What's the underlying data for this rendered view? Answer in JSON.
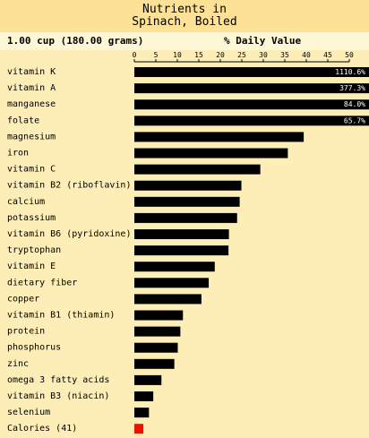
{
  "title": {
    "line1": "Nutrients in",
    "line2": "Spinach, Boiled"
  },
  "header": {
    "serving": "1.00 cup (180.00 grams)",
    "dv_label": "% Daily Value"
  },
  "colors": {
    "bar": "#000000",
    "calories_bar": "#ee1100",
    "title_bg": "#fde196",
    "header_bg": "#fdf7d6",
    "body_bg": "#fdedb7"
  },
  "chart_data": {
    "type": "bar",
    "orientation": "horizontal",
    "xlim": [
      0,
      50
    ],
    "xticks": [
      0,
      5,
      10,
      15,
      20,
      25,
      30,
      35,
      40,
      45,
      50
    ],
    "grid": false,
    "categories": [
      "vitamin K",
      "vitamin A",
      "manganese",
      "folate",
      "magnesium",
      "iron",
      "vitamin C",
      "vitamin B2 (riboflavin)",
      "calcium",
      "potassium",
      "vitamin B6 (pyridoxine)",
      "tryptophan",
      "vitamin E",
      "dietary fiber",
      "copper",
      "vitamin B1 (thiamin)",
      "protein",
      "phosphorus",
      "zinc",
      "omega 3 fatty acids",
      "vitamin B3 (niacin)",
      "selenium",
      "Calories (41)"
    ],
    "values": [
      1110.6,
      377.3,
      84.0,
      65.7,
      39.4,
      35.7,
      29.3,
      24.9,
      24.5,
      23.9,
      22.0,
      21.9,
      18.7,
      17.3,
      15.6,
      11.3,
      10.7,
      10.1,
      9.3,
      6.3,
      4.4,
      3.4,
      2.0
    ],
    "data_labels": [
      "1110.6%",
      "377.3%",
      "84.0%",
      "65.7%",
      "",
      "",
      "",
      "",
      "",
      "",
      "",
      "",
      "",
      "",
      "",
      "",
      "",
      "",
      "",
      "",
      "",
      "",
      ""
    ],
    "highlight_last": true
  }
}
